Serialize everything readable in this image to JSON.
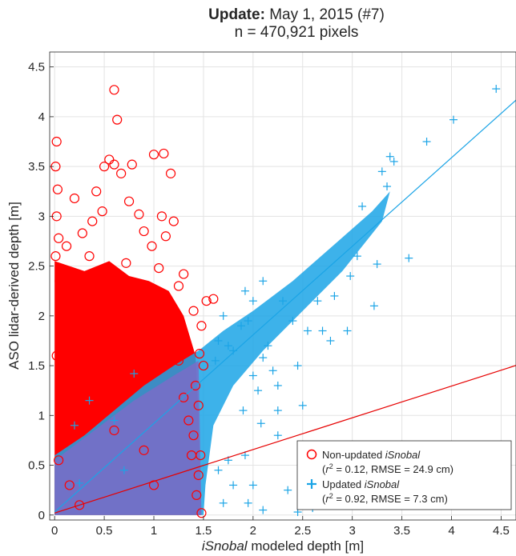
{
  "chart_data": {
    "type": "scatter",
    "title_bold": "Update:",
    "title_rest": "May 1, 2015 (#7)",
    "subtitle": "n = 470,921 pixels",
    "xlabel_italic": "iSnobal",
    "xlabel_rest": "modeled depth [m]",
    "ylabel": "ASO lidar-derived depth [m]",
    "xlim": [
      -0.05,
      4.65
    ],
    "ylim": [
      -0.05,
      4.65
    ],
    "xticks": [
      0,
      0.5,
      1,
      1.5,
      2,
      2.5,
      3,
      3.5,
      4,
      4.5
    ],
    "xtick_labels": [
      "0",
      "0.5",
      "1",
      "1.5",
      "2",
      "2.5",
      "3",
      "3.5",
      "4",
      "4.5"
    ],
    "yticks": [
      0,
      0.5,
      1,
      1.5,
      2,
      2.5,
      3,
      3.5,
      4,
      4.5
    ],
    "ytick_labels": [
      "0",
      "0.5",
      "1",
      "1.5",
      "2",
      "2.5",
      "3",
      "3.5",
      "4",
      "4.5"
    ],
    "grid": true,
    "legend_position": "bottom-right",
    "series": [
      {
        "name_prefix": "Non-updated",
        "name_italic": "iSnobal",
        "stats": "= 0.12, RMSE = 24.9 cm)",
        "marker": "circle",
        "color": "#ff0000",
        "fit_line": {
          "x": [
            0,
            4.8
          ],
          "y": [
            0.02,
            1.55
          ]
        },
        "points": [
          [
            0.02,
            3.75
          ],
          [
            0.01,
            3.5
          ],
          [
            0.03,
            3.27
          ],
          [
            0.02,
            3.0
          ],
          [
            0.04,
            2.78
          ],
          [
            0.01,
            2.6
          ],
          [
            0.6,
            4.27
          ],
          [
            0.63,
            3.97
          ],
          [
            0.55,
            3.57
          ],
          [
            0.6,
            3.52
          ],
          [
            0.5,
            3.5
          ],
          [
            0.67,
            3.43
          ],
          [
            0.78,
            3.52
          ],
          [
            1.0,
            3.62
          ],
          [
            1.1,
            3.63
          ],
          [
            1.17,
            3.43
          ],
          [
            0.2,
            3.18
          ],
          [
            0.42,
            3.25
          ],
          [
            0.48,
            3.05
          ],
          [
            0.75,
            3.15
          ],
          [
            0.85,
            3.02
          ],
          [
            0.38,
            2.95
          ],
          [
            0.28,
            2.83
          ],
          [
            1.08,
            3.0
          ],
          [
            1.2,
            2.95
          ],
          [
            0.98,
            2.7
          ],
          [
            1.12,
            2.8
          ],
          [
            0.35,
            2.6
          ],
          [
            0.12,
            2.7
          ],
          [
            0.9,
            2.85
          ],
          [
            1.3,
            2.42
          ],
          [
            1.25,
            2.3
          ],
          [
            1.6,
            2.17
          ],
          [
            1.53,
            2.15
          ],
          [
            1.4,
            2.05
          ],
          [
            1.48,
            1.9
          ],
          [
            1.46,
            1.62
          ],
          [
            1.5,
            1.5
          ],
          [
            1.42,
            1.3
          ],
          [
            1.45,
            1.1
          ],
          [
            1.4,
            0.8
          ],
          [
            1.47,
            0.6
          ],
          [
            1.45,
            0.4
          ],
          [
            1.43,
            0.2
          ],
          [
            1.48,
            0.02
          ],
          [
            0.05,
            2.35
          ],
          [
            0.3,
            2.2
          ],
          [
            0.55,
            2.42
          ],
          [
            0.72,
            2.53
          ],
          [
            1.05,
            2.48
          ],
          [
            0.18,
            1.95
          ],
          [
            1.2,
            1.85
          ],
          [
            1.25,
            1.55
          ],
          [
            1.3,
            1.18
          ],
          [
            1.35,
            0.95
          ],
          [
            1.38,
            0.6
          ],
          [
            0.25,
            0.1
          ],
          [
            0.15,
            0.3
          ],
          [
            0.6,
            0.85
          ],
          [
            0.9,
            0.65
          ],
          [
            1.0,
            0.3
          ],
          [
            0.04,
            0.55
          ],
          [
            0.02,
            1.6
          ]
        ]
      },
      {
        "name_prefix": "Updated",
        "name_italic": "iSnobal",
        "stats": "= 0.92, RMSE = 7.3 cm)",
        "marker": "plus",
        "color": "#1ba4e6",
        "fit_line": {
          "x": [
            0,
            4.8
          ],
          "y": [
            0.03,
            4.3
          ]
        },
        "points": [
          [
            4.45,
            4.28
          ],
          [
            4.02,
            3.97
          ],
          [
            3.75,
            3.75
          ],
          [
            3.38,
            3.6
          ],
          [
            3.42,
            3.55
          ],
          [
            3.3,
            3.45
          ],
          [
            3.35,
            3.3
          ],
          [
            3.1,
            3.1
          ],
          [
            3.57,
            2.58
          ],
          [
            3.25,
            2.52
          ],
          [
            3.05,
            2.6
          ],
          [
            2.98,
            2.4
          ],
          [
            3.22,
            2.1
          ],
          [
            2.82,
            2.2
          ],
          [
            2.65,
            2.15
          ],
          [
            2.4,
            1.95
          ],
          [
            2.7,
            1.85
          ],
          [
            2.3,
            2.15
          ],
          [
            2.1,
            2.35
          ],
          [
            2.0,
            2.15
          ],
          [
            1.92,
            2.25
          ],
          [
            2.55,
            1.85
          ],
          [
            2.95,
            1.85
          ],
          [
            2.78,
            1.75
          ],
          [
            2.45,
            1.5
          ],
          [
            2.2,
            1.45
          ],
          [
            2.0,
            1.4
          ],
          [
            2.1,
            1.58
          ],
          [
            1.88,
            1.9
          ],
          [
            1.75,
            1.7
          ],
          [
            2.25,
            1.3
          ],
          [
            2.05,
            1.25
          ],
          [
            2.25,
            1.05
          ],
          [
            2.08,
            0.92
          ],
          [
            1.9,
            1.05
          ],
          [
            2.5,
            1.1
          ],
          [
            2.25,
            0.8
          ],
          [
            2.5,
            0.55
          ],
          [
            3.35,
            0.58
          ],
          [
            2.35,
            0.25
          ],
          [
            2.9,
            0.32
          ],
          [
            3.25,
            0.2
          ],
          [
            2.1,
            0.05
          ],
          [
            2.45,
            0.03
          ],
          [
            2.6,
            0.07
          ],
          [
            2.0,
            0.3
          ],
          [
            1.92,
            0.6
          ],
          [
            1.75,
            0.55
          ],
          [
            1.95,
            1.95
          ],
          [
            1.7,
            2.0
          ],
          [
            1.8,
            1.65
          ],
          [
            1.65,
            1.75
          ],
          [
            2.15,
            1.7
          ],
          [
            1.62,
            1.55
          ],
          [
            1.65,
            0.45
          ],
          [
            1.8,
            0.3
          ],
          [
            1.7,
            0.12
          ],
          [
            1.95,
            0.12
          ],
          [
            0.8,
            1.42
          ],
          [
            0.35,
            1.15
          ],
          [
            0.2,
            0.9
          ],
          [
            0.6,
            0.95
          ],
          [
            0.25,
            0.32
          ],
          [
            0.7,
            0.45
          ]
        ]
      }
    ],
    "fit_line_color_red": "#e60000",
    "fit_line_color_blue": "#1ba4e6"
  }
}
